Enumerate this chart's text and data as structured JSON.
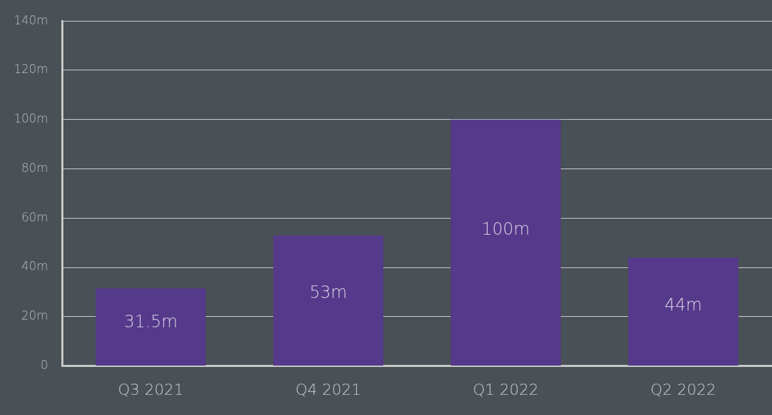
{
  "chart_data": {
    "type": "bar",
    "categories": [
      "Q3 2021",
      "Q4 2021",
      "Q1 2022",
      "Q2 2022"
    ],
    "values": [
      31.5,
      53,
      100,
      44
    ],
    "value_labels": [
      "31.5m",
      "53m",
      "100m",
      "44m"
    ],
    "color": "#55398a",
    "ylim": [
      0,
      140
    ],
    "yticks": [
      {
        "value": 0,
        "label": "0"
      },
      {
        "value": 20,
        "label": "20m"
      },
      {
        "value": 40,
        "label": "40m"
      },
      {
        "value": 60,
        "label": "60m"
      },
      {
        "value": 80,
        "label": "80m"
      },
      {
        "value": 100,
        "label": "100m"
      },
      {
        "value": 120,
        "label": "120m"
      },
      {
        "value": 140,
        "label": "140m"
      }
    ],
    "grid": "y"
  }
}
